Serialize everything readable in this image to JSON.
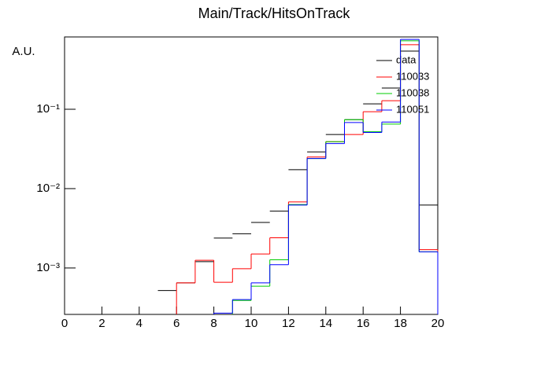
{
  "chart_data": {
    "type": "histogram",
    "title": "Main/Track/HitsOnTrack",
    "y_label": "A.U.",
    "bins": [
      0,
      1,
      2,
      3,
      4,
      5,
      6,
      7,
      8,
      9,
      10,
      11,
      12,
      13,
      14,
      15,
      16,
      17,
      18,
      19,
      20
    ],
    "log_y": true,
    "xlim": [
      0,
      20
    ],
    "xticks": [
      0,
      2,
      4,
      6,
      8,
      10,
      12,
      14,
      16,
      18,
      20
    ],
    "ylim": [
      0.00026,
      0.815
    ],
    "yticks": [
      {
        "value": 0.001,
        "label": "10⁻³"
      },
      {
        "value": 0.01,
        "label": "10⁻²"
      },
      {
        "value": 0.1,
        "label": "10⁻¹"
      }
    ],
    "series": [
      {
        "name": "data",
        "color": "#000000",
        "style": "points",
        "values": [
          null,
          null,
          null,
          null,
          null,
          0.00052,
          0.00065,
          0.0012,
          0.00238,
          0.0027,
          0.00375,
          0.0052,
          0.0173,
          0.029,
          0.048,
          0.074,
          0.117,
          0.185,
          0.54,
          0.0062
        ]
      },
      {
        "name": "110033",
        "color": "#ff0000",
        "style": "step",
        "values": [
          null,
          null,
          null,
          null,
          null,
          null,
          0.00065,
          0.00125,
          0.00066,
          0.00098,
          0.0015,
          0.0024,
          0.0068,
          0.025,
          0.039,
          0.048,
          0.093,
          0.128,
          0.65,
          0.0017
        ]
      },
      {
        "name": "110038",
        "color": "#00cc00",
        "style": "step",
        "values": [
          null,
          null,
          null,
          null,
          null,
          null,
          null,
          null,
          null,
          0.00039,
          0.00059,
          0.00127,
          0.0063,
          0.024,
          0.039,
          0.074,
          0.052,
          0.065,
          0.73,
          0.0016
        ]
      },
      {
        "name": "110051",
        "color": "#0000ff",
        "style": "step",
        "values": [
          null,
          null,
          null,
          null,
          null,
          null,
          null,
          null,
          0.00027,
          0.0004,
          0.00065,
          0.0011,
          0.0062,
          0.024,
          0.037,
          0.068,
          0.051,
          0.069,
          0.76,
          0.0016
        ]
      }
    ]
  }
}
